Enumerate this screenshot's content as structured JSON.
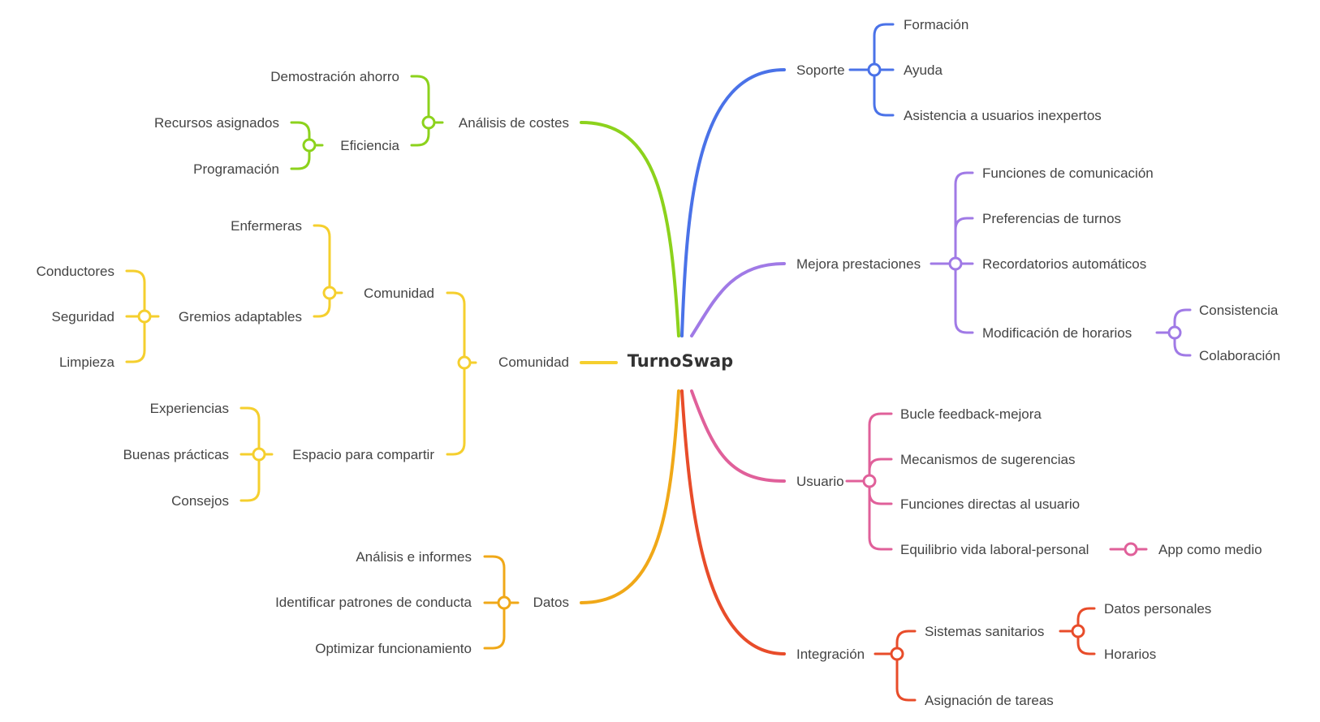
{
  "root": "TurnoSwap",
  "colors": {
    "soporte": "#4a72e8",
    "mejora": "#a07ae6",
    "usuario": "#e0609a",
    "integracion": "#e84c2a",
    "datos": "#f0a818",
    "comunidad": "#f5cf2e",
    "costes": "#8cd21c"
  },
  "branches": {
    "soporte": {
      "label": "Soporte",
      "items": [
        "Formación",
        "Ayuda",
        "Asistencia a usuarios inexpertos"
      ]
    },
    "mejora": {
      "label": "Mejora prestaciones",
      "items": [
        "Funciones de comunicación",
        "Preferencias de turnos",
        "Recordatorios automáticos",
        "Modificación de horarios"
      ],
      "modificacion_children": [
        "Consistencia",
        "Colaboración"
      ]
    },
    "usuario": {
      "label": "Usuario",
      "items": [
        "Bucle feedback-mejora",
        "Mecanismos de sugerencias",
        "Funciones directas al usuario",
        "Equilibrio vida laboral-personal"
      ],
      "equilibrio_child": "App como medio"
    },
    "integracion": {
      "label": "Integración",
      "items": [
        "Sistemas sanitarios",
        "Asignación de tareas"
      ],
      "sistemas_children": [
        "Datos personales",
        "Horarios"
      ]
    },
    "datos": {
      "label": "Datos",
      "items": [
        "Análisis e informes",
        "Identificar patrones de conducta",
        "Optimizar funcionamiento"
      ]
    },
    "comunidad": {
      "label": "Comunidad",
      "sub1": {
        "label": "Comunidad",
        "items": [
          "Enfermeras",
          "Gremios adaptables"
        ],
        "gremios_children": [
          "Conductores",
          "Seguridad",
          "Limpieza"
        ]
      },
      "sub2": {
        "label": "Espacio para compartir",
        "items": [
          "Experiencias",
          "Buenas prácticas",
          "Consejos"
        ]
      }
    },
    "costes": {
      "label": "Análisis de costes",
      "items": [
        "Demostración ahorro",
        "Eficiencia"
      ],
      "eficiencia_children": [
        "Recursos asignados",
        "Programación"
      ]
    }
  }
}
